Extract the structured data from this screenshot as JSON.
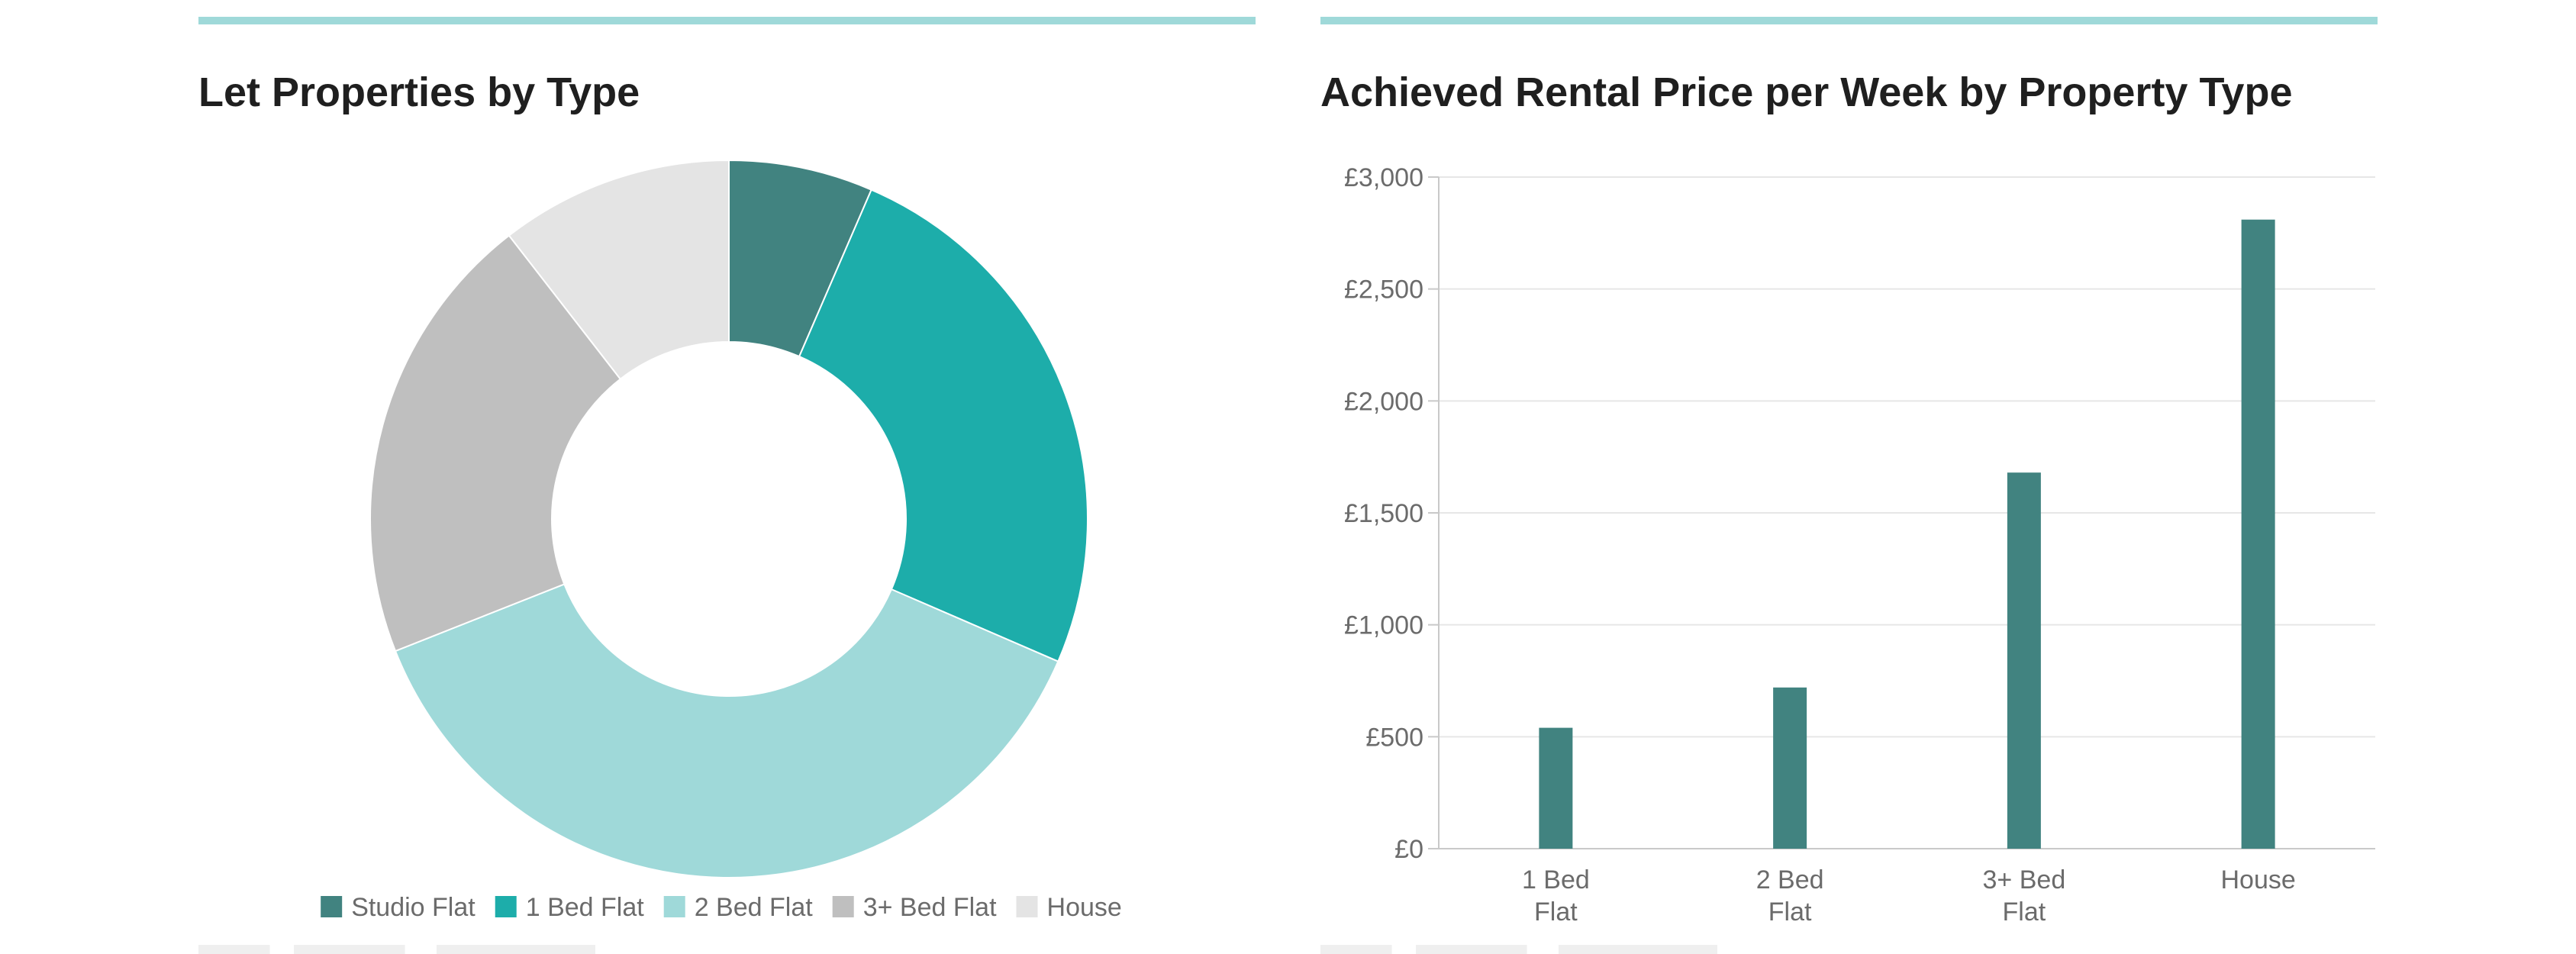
{
  "colors": {
    "accent_bar": "#9fd9d9",
    "bar": "#418380",
    "gridline": "#e6e6e6",
    "axis": "#c9c9c9"
  },
  "left_panel": {
    "title": "Let Properties by Type"
  },
  "right_panel": {
    "title": "Achieved Rental Price per Week by Property Type"
  },
  "chart_data": [
    {
      "type": "pie",
      "donut": true,
      "title": "Let Properties by Type",
      "legend_position": "bottom",
      "categories": [
        "Studio Flat",
        "1 Bed Flat",
        "2 Bed Flat",
        "3+ Bed Flat",
        "House"
      ],
      "values": [
        6.5,
        25,
        37.5,
        20.5,
        10.5
      ],
      "colors": [
        "#418380",
        "#1dadaa",
        "#9fd9d9",
        "#bfbfbf",
        "#e4e4e4"
      ]
    },
    {
      "type": "bar",
      "title": "Achieved Rental Price per Week by Property Type",
      "categories": [
        [
          "1 Bed",
          "Flat"
        ],
        [
          "2 Bed",
          "Flat"
        ],
        [
          "3+ Bed",
          "Flat"
        ],
        [
          "House"
        ]
      ],
      "values": [
        540,
        720,
        1680,
        2810
      ],
      "ylim": [
        0,
        3000
      ],
      "yticks": [
        "£0",
        "£500",
        "£1,000",
        "£1,500",
        "£2,000",
        "£2,500",
        "£3,000"
      ],
      "ytick_values": [
        0,
        500,
        1000,
        1500,
        2000,
        2500,
        3000
      ],
      "grid": true,
      "xlabel": "",
      "ylabel": ""
    }
  ]
}
